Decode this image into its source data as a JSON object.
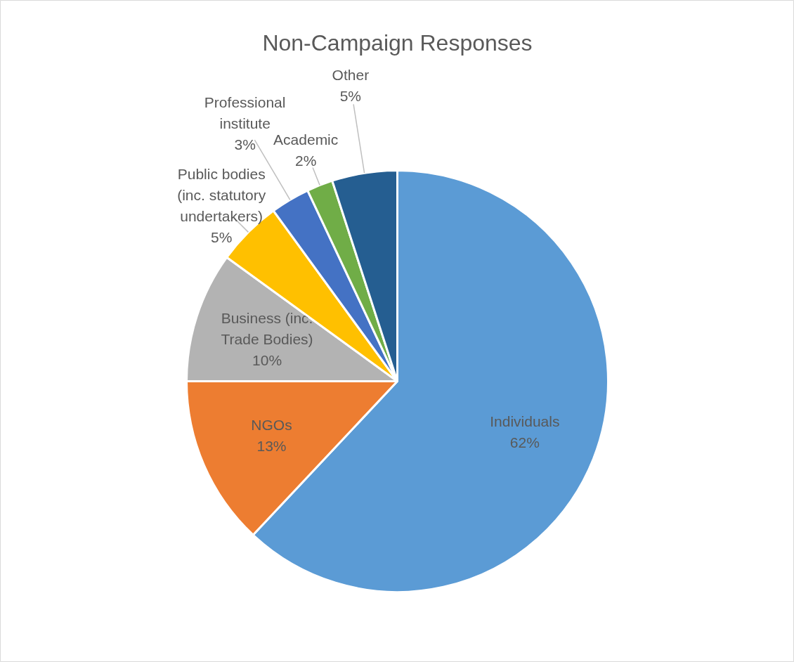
{
  "chart_data": {
    "type": "pie",
    "title": "Non-Campaign Responses",
    "categories": [
      "Individuals",
      "NGOs",
      "Business (inc. Trade Bodies)",
      "Public bodies (inc. statutory undertakers)",
      "Professional institute",
      "Academic",
      "Other"
    ],
    "values": [
      62,
      13,
      10,
      5,
      3,
      2,
      5
    ],
    "value_labels": [
      "62%",
      "13%",
      "10%",
      "5%",
      "3%",
      "2%",
      "5%"
    ],
    "colors": [
      "#5b9bd5",
      "#ed7d31",
      "#b3b3b3",
      "#ffc000",
      "#4472c4",
      "#70ad47",
      "#255e91"
    ]
  }
}
